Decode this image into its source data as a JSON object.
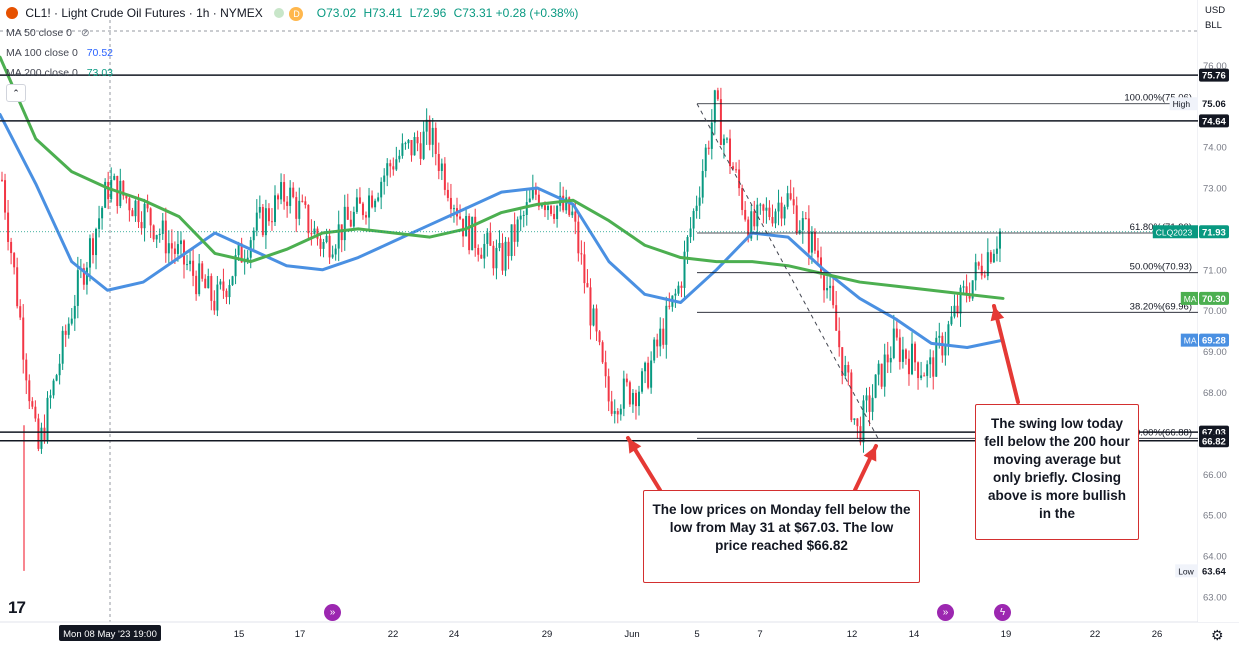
{
  "header": {
    "title": "CL1! · Light Crude Oil Futures · 1h · NYMEX",
    "badge_d": "D",
    "open": "O73.02",
    "high": "H73.41",
    "low": "L72.96",
    "close": "C73.31",
    "change": "+0.28 (+0.38%)"
  },
  "indicators": [
    {
      "label": "MA 50 close 0",
      "value": ""
    },
    {
      "label": "MA 100 close 0",
      "value": "70.52"
    },
    {
      "label": "MA 200 close 0",
      "value": "73.03"
    }
  ],
  "colors": {
    "ma100": "#4a90e2",
    "ma200": "#4caf50",
    "up": "#089981",
    "down": "#f23645",
    "callout_border": "#d32f2f",
    "arrow": "#e53935"
  },
  "price_axis": {
    "currency": "USD",
    "unit_menu": "BLL",
    "ticks": [
      "76.00",
      "75.00",
      "74.00",
      "73.00",
      "72.00",
      "71.00",
      "70.00",
      "69.00",
      "68.00",
      "67.00",
      "66.00",
      "65.00",
      "64.00",
      "63.00"
    ],
    "tags": [
      {
        "text": "75.76",
        "value": 75.76,
        "bg": "#131722",
        "fg": "#ffffff"
      },
      {
        "text": "75.06",
        "value": 75.06,
        "bg": "#ffffff",
        "fg": "#131722",
        "prefix": "High"
      },
      {
        "text": "74.64",
        "value": 74.64,
        "bg": "#131722",
        "fg": "#ffffff"
      },
      {
        "text": "71.93",
        "value": 71.93,
        "bg": "#089981",
        "fg": "#ffffff",
        "prefix": "CLQ2023"
      },
      {
        "text": "70.30",
        "value": 70.3,
        "bg": "#4caf50",
        "fg": "#ffffff",
        "prefix": "MA"
      },
      {
        "text": "69.28",
        "value": 69.28,
        "bg": "#4a90e2",
        "fg": "#ffffff",
        "prefix": "MA"
      },
      {
        "text": "67.03",
        "value": 67.03,
        "bg": "#131722",
        "fg": "#ffffff"
      },
      {
        "text": "66.82",
        "value": 66.82,
        "bg": "#131722",
        "fg": "#ffffff"
      },
      {
        "text": "63.64",
        "value": 63.64,
        "bg": "#ffffff",
        "fg": "#131722",
        "prefix": "Low"
      }
    ]
  },
  "time_axis": {
    "current": "Mon 08 May '23   19:00",
    "ticks": [
      "15",
      "17",
      "22",
      "24",
      "29",
      "Jun",
      "5",
      "7",
      "12",
      "14",
      "19",
      "22",
      "26"
    ]
  },
  "fib_labels": {
    "f100": "100.00%(75.06)",
    "f618": "61.80%(71.90)",
    "f50": "50.00%(70.93)",
    "f382": "38.20%(69.96)",
    "f0": "0.00%(66.88)"
  },
  "callouts": {
    "left": "The low prices on Monday fell below the low from May 31 at $67.03. The low price reached $66.82",
    "right": "The swing low today fell below the 200 hour moving average but only briefly. Closing above is more bullish in the"
  },
  "chart_data": {
    "type": "line",
    "title": "CL1! · Light Crude Oil Futures · 1h · NYMEX",
    "xlabel": "",
    "ylabel": "",
    "ylim": [
      62.8,
      77.3
    ],
    "x_ticks": [
      "15",
      "17",
      "22",
      "24",
      "29",
      "Jun",
      "5",
      "7",
      "12",
      "14",
      "19",
      "22",
      "26"
    ],
    "horizontal_levels": [
      75.76,
      74.64,
      67.03,
      66.82
    ],
    "fibonacci": {
      "high": 75.06,
      "low": 66.88,
      "levels": [
        {
          "pct": "100.00%",
          "value": 75.06
        },
        {
          "pct": "61.80%",
          "value": 71.9
        },
        {
          "pct": "50.00%",
          "value": 70.93
        },
        {
          "pct": "38.20%",
          "value": 69.96
        },
        {
          "pct": "0.00%",
          "value": 66.88
        }
      ]
    },
    "x": [
      0,
      10,
      20,
      30,
      40,
      50,
      60,
      70,
      80,
      90,
      100,
      110,
      120,
      130,
      140,
      150,
      160,
      170,
      180,
      190,
      200,
      210,
      220,
      230,
      240,
      250,
      260,
      270,
      280
    ],
    "series": [
      {
        "name": "MA 100 close 0",
        "values": [
          74.8,
          73.1,
          71.2,
          70.5,
          70.7,
          71.3,
          71.9,
          71.5,
          71.1,
          71.0,
          71.3,
          71.7,
          72.1,
          72.5,
          72.9,
          73.0,
          72.6,
          71.2,
          70.4,
          70.2,
          71.0,
          71.9,
          71.8,
          71.0,
          70.3,
          69.8,
          69.2,
          69.1,
          69.28
        ]
      },
      {
        "name": "MA 200 close 0",
        "values": [
          76.2,
          74.2,
          73.4,
          73.0,
          72.7,
          72.3,
          71.4,
          71.2,
          71.5,
          71.9,
          72.0,
          71.9,
          71.8,
          72.0,
          72.4,
          72.6,
          72.7,
          72.2,
          71.6,
          71.3,
          71.2,
          71.2,
          71.1,
          70.9,
          70.7,
          70.6,
          70.5,
          70.4,
          70.3
        ]
      },
      {
        "name": "CL1! close",
        "values": [
          73.2,
          66.5,
          70.2,
          73.1,
          72.4,
          71.3,
          70.2,
          71.9,
          72.9,
          71.6,
          72.4,
          73.7,
          74.3,
          72.0,
          71.2,
          72.9,
          72.3,
          67.8,
          68.2,
          70.6,
          75.0,
          72.0,
          72.8,
          71.2,
          67.0,
          69.2,
          68.5,
          70.4,
          71.93
        ]
      }
    ]
  }
}
